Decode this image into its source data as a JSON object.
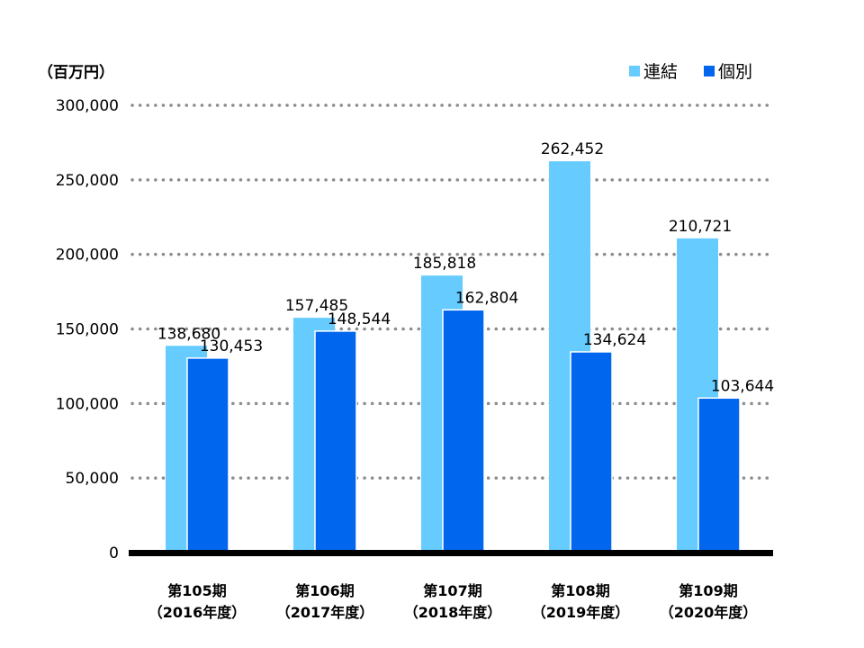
{
  "chart_data": {
    "type": "bar",
    "unit_label": "（百万円）",
    "categories": [
      [
        "第105期",
        "（2016年度）"
      ],
      [
        "第106期",
        "（2017年度）"
      ],
      [
        "第107期",
        "（2018年度）"
      ],
      [
        "第108期",
        "（2019年度）"
      ],
      [
        "第109期",
        "（2020年度）"
      ]
    ],
    "series": [
      {
        "name": "連結",
        "color": "#66ccff",
        "values": [
          138680,
          157485,
          185818,
          262452,
          210721
        ],
        "labels": [
          "138,680",
          "157,485",
          "185,818",
          "262,452",
          "210,721"
        ]
      },
      {
        "name": "個別",
        "color": "#0066ee",
        "values": [
          130453,
          148544,
          162804,
          134624,
          103644
        ],
        "labels": [
          "130,453",
          "148,544",
          "162,804",
          "134,624",
          "103,644"
        ]
      }
    ],
    "ylim": [
      0,
      300000
    ],
    "yticks": [
      0,
      50000,
      100000,
      150000,
      200000,
      250000,
      300000
    ],
    "ytick_labels": [
      "0",
      "50,000",
      "100,000",
      "150,000",
      "200,000",
      "250,000",
      "300,000"
    ],
    "grid": "dotted",
    "legend": "top-right"
  }
}
